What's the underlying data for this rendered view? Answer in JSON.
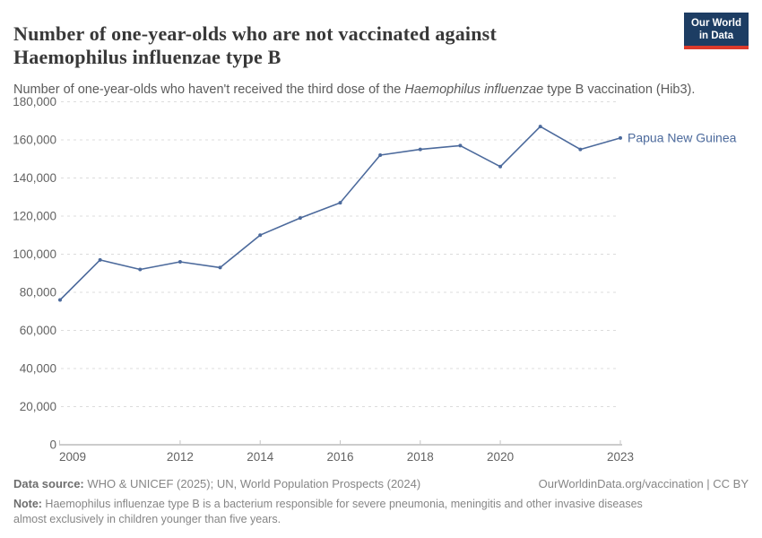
{
  "header": {
    "title": "Number of one-year-olds who are not vaccinated against Haemophilus influenzae type B",
    "subtitle_pre": "Number of one-year-olds who haven't received the third dose of the ",
    "subtitle_italic": "Haemophilus influenzae",
    "subtitle_post": " type B vaccination (Hib3).",
    "logo": {
      "line1": "Our World",
      "line2": "in Data",
      "bg_color": "#1d3d63",
      "accent_color": "#dc3a2b"
    }
  },
  "chart_data": {
    "type": "line",
    "title": "Number of one-year-olds who are not vaccinated against Haemophilus influenzae type B",
    "x": [
      2009,
      2010,
      2011,
      2012,
      2013,
      2014,
      2015,
      2016,
      2017,
      2018,
      2019,
      2020,
      2021,
      2022,
      2023
    ],
    "series": [
      {
        "name": "Papua New Guinea",
        "color": "#4c6a9c",
        "values": [
          76000,
          97000,
          92000,
          96000,
          93000,
          110000,
          119000,
          127000,
          152000,
          155000,
          157000,
          146000,
          167000,
          155000,
          161000
        ]
      }
    ],
    "x_ticks": [
      2009,
      2012,
      2014,
      2016,
      2018,
      2020,
      2023
    ],
    "y_ticks": [
      0,
      20000,
      40000,
      60000,
      80000,
      100000,
      120000,
      140000,
      160000,
      180000
    ],
    "ylim": [
      0,
      180000
    ],
    "xlabel": "",
    "ylabel": "",
    "grid": "horizontal-dashed",
    "legend_position": "end-of-line-label",
    "axis_color": "#9a9a9a",
    "grid_color": "#dcdcdc",
    "tick_label_color": "#636363"
  },
  "footer": {
    "datasource_label": "Data source:",
    "datasource_text": " WHO & UNICEF (2025); UN, World Population Prospects (2024)",
    "rights": "OurWorldinData.org/vaccination | CC BY",
    "note_label": "Note:",
    "note_text": " Haemophilus influenzae type B is a bacterium responsible for severe pneumonia, meningitis and other invasive diseases almost exclusively in children younger than five years."
  }
}
